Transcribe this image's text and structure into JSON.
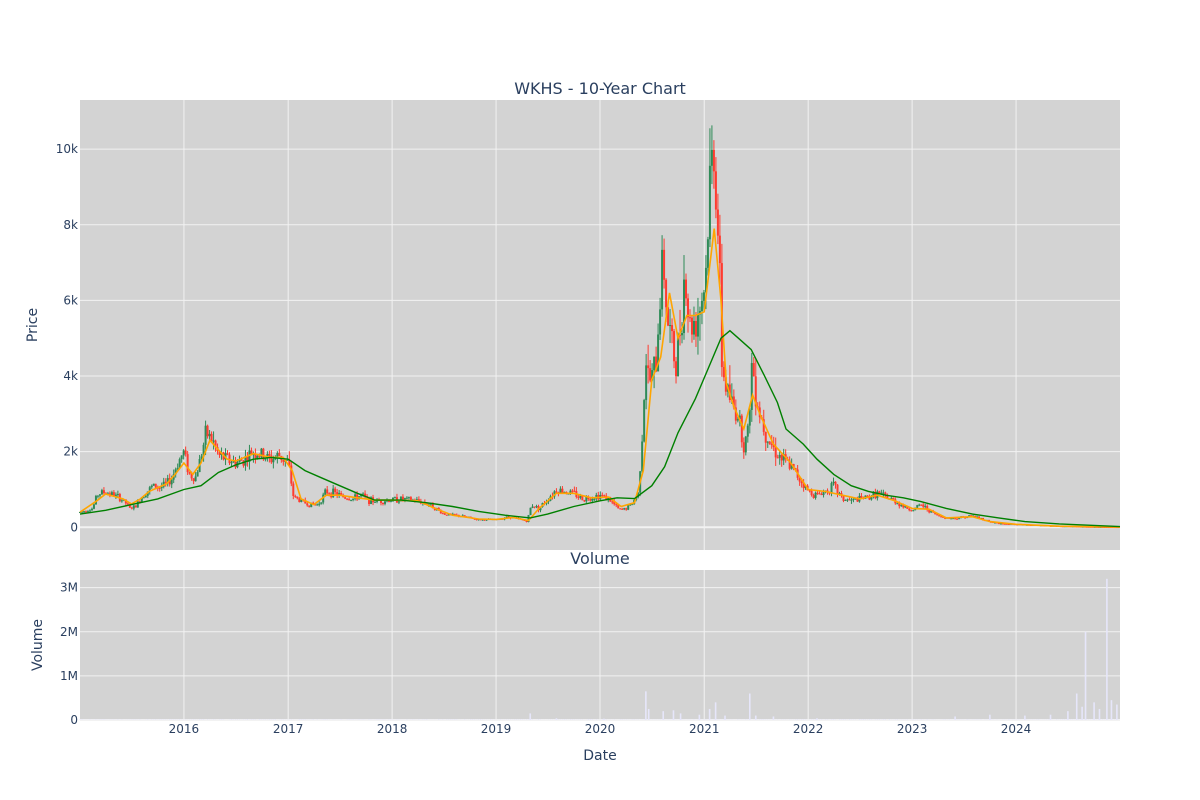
{
  "chart_data": {
    "type": "candlestick",
    "title": "WKHS - 10-Year Chart",
    "colors": {
      "plot_background": "#d3d3d3",
      "grid": "#f2f2f2",
      "increasing": "#2e8b57",
      "decreasing": "#ff3b2f",
      "ma_short": "#ffa500",
      "ma_long": "#008000",
      "volume": "#e6e6fa",
      "text": "#2a3f5f"
    },
    "price_panel": {
      "ylabel": "Price",
      "ylim": [
        -600,
        11300
      ],
      "yticks": [
        0,
        2000,
        4000,
        6000,
        8000,
        10000
      ],
      "ytick_labels": [
        "0",
        "2k",
        "4k",
        "6k",
        "8k",
        "10k"
      ],
      "grid": true,
      "series_keys": [
        {
          "type": "candlestick"
        },
        {
          "type": "line",
          "color": "#ffa500",
          "description": "short moving average"
        },
        {
          "type": "line",
          "color": "#008000",
          "description": "long moving average"
        }
      ],
      "close": [
        [
          "2015-01-01",
          400
        ],
        [
          "2015-02-15",
          500
        ],
        [
          "2015-03-01",
          850
        ],
        [
          "2015-03-20",
          930
        ],
        [
          "2015-04-15",
          900
        ],
        [
          "2015-05-15",
          800
        ],
        [
          "2015-06-10",
          650
        ],
        [
          "2015-06-25",
          500
        ],
        [
          "2015-07-15",
          550
        ],
        [
          "2015-08-10",
          850
        ],
        [
          "2015-09-01",
          1000
        ],
        [
          "2015-09-15",
          1100
        ],
        [
          "2015-10-10",
          1050
        ],
        [
          "2015-11-01",
          1150
        ],
        [
          "2015-11-20",
          1300
        ],
        [
          "2015-12-10",
          1700
        ],
        [
          "2016-01-01",
          2000
        ],
        [
          "2016-01-20",
          1400
        ],
        [
          "2016-02-10",
          1300
        ],
        [
          "2016-03-01",
          1900
        ],
        [
          "2016-03-20",
          2500
        ],
        [
          "2016-04-10",
          2300
        ],
        [
          "2016-05-01",
          1900
        ],
        [
          "2016-06-01",
          1800
        ],
        [
          "2016-07-01",
          1700
        ],
        [
          "2016-08-01",
          1800
        ],
        [
          "2016-09-01",
          2000
        ],
        [
          "2016-10-01",
          1900
        ],
        [
          "2016-11-01",
          1800
        ],
        [
          "2016-12-01",
          1900
        ],
        [
          "2017-01-01",
          1700
        ],
        [
          "2017-01-20",
          800
        ],
        [
          "2017-02-15",
          700
        ],
        [
          "2017-03-15",
          600
        ],
        [
          "2017-04-15",
          600
        ],
        [
          "2017-05-15",
          950
        ],
        [
          "2017-06-15",
          900
        ],
        [
          "2017-07-15",
          800
        ],
        [
          "2017-08-15",
          750
        ],
        [
          "2017-09-15",
          850
        ],
        [
          "2017-10-15",
          700
        ],
        [
          "2017-12-01",
          700
        ],
        [
          "2018-02-01",
          750
        ],
        [
          "2018-04-01",
          700
        ],
        [
          "2018-05-15",
          600
        ],
        [
          "2018-07-01",
          350
        ],
        [
          "2018-09-01",
          300
        ],
        [
          "2018-11-01",
          200
        ],
        [
          "2019-01-01",
          200
        ],
        [
          "2019-02-15",
          280
        ],
        [
          "2019-04-01",
          200
        ],
        [
          "2019-04-20",
          150
        ],
        [
          "2019-05-05",
          600
        ],
        [
          "2019-06-01",
          500
        ],
        [
          "2019-07-01",
          750
        ],
        [
          "2019-08-01",
          1000
        ],
        [
          "2019-09-01",
          950
        ],
        [
          "2019-10-01",
          900
        ],
        [
          "2019-11-01",
          750
        ],
        [
          "2019-12-01",
          800
        ],
        [
          "2020-01-01",
          850
        ],
        [
          "2020-02-01",
          750
        ],
        [
          "2020-03-10",
          450
        ],
        [
          "2020-04-01",
          500
        ],
        [
          "2020-04-20",
          600
        ],
        [
          "2020-05-15",
          900
        ],
        [
          "2020-06-01",
          3000
        ],
        [
          "2020-06-10",
          4500
        ],
        [
          "2020-06-20",
          3800
        ],
        [
          "2020-07-01",
          4000
        ],
        [
          "2020-07-15",
          4200
        ],
        [
          "2020-08-01",
          6500
        ],
        [
          "2020-08-10",
          7200
        ],
        [
          "2020-08-25",
          5500
        ],
        [
          "2020-09-10",
          4800
        ],
        [
          "2020-09-25",
          4200
        ],
        [
          "2020-10-10",
          5500
        ],
        [
          "2020-10-25",
          6800
        ],
        [
          "2020-11-10",
          5300
        ],
        [
          "2020-12-01",
          5500
        ],
        [
          "2020-12-20",
          6000
        ],
        [
          "2021-01-05",
          6500
        ],
        [
          "2021-01-20",
          9000
        ],
        [
          "2021-02-05",
          10200
        ],
        [
          "2021-02-20",
          7500
        ],
        [
          "2021-03-05",
          4200
        ],
        [
          "2021-03-20",
          3700
        ],
        [
          "2021-04-10",
          3200
        ],
        [
          "2021-05-01",
          3000
        ],
        [
          "2021-05-20",
          2200
        ],
        [
          "2021-06-05",
          2500
        ],
        [
          "2021-06-15",
          4300
        ],
        [
          "2021-06-25",
          4000
        ],
        [
          "2021-07-10",
          3200
        ],
        [
          "2021-08-01",
          2600
        ],
        [
          "2021-09-01",
          2100
        ],
        [
          "2021-10-01",
          1800
        ],
        [
          "2021-11-01",
          1600
        ],
        [
          "2021-12-01",
          1300
        ],
        [
          "2022-01-01",
          950
        ],
        [
          "2022-02-01",
          850
        ],
        [
          "2022-03-01",
          950
        ],
        [
          "2022-04-01",
          1100
        ],
        [
          "2022-05-01",
          750
        ],
        [
          "2022-06-01",
          700
        ],
        [
          "2022-07-01",
          750
        ],
        [
          "2022-08-01",
          800
        ],
        [
          "2022-09-01",
          900
        ],
        [
          "2022-10-01",
          800
        ],
        [
          "2022-11-01",
          700
        ],
        [
          "2022-12-01",
          550
        ],
        [
          "2023-01-01",
          450
        ],
        [
          "2023-02-01",
          600
        ],
        [
          "2023-03-01",
          450
        ],
        [
          "2023-04-01",
          300
        ],
        [
          "2023-05-01",
          250
        ],
        [
          "2023-06-01",
          230
        ],
        [
          "2023-07-01",
          280
        ],
        [
          "2023-08-01",
          300
        ],
        [
          "2023-09-01",
          230
        ],
        [
          "2023-10-01",
          150
        ],
        [
          "2023-11-01",
          100
        ],
        [
          "2023-12-01",
          90
        ],
        [
          "2024-01-01",
          80
        ],
        [
          "2024-02-01",
          70
        ],
        [
          "2024-04-01",
          50
        ],
        [
          "2024-06-01",
          30
        ],
        [
          "2024-08-01",
          20
        ],
        [
          "2024-10-01",
          10
        ],
        [
          "2024-12-31",
          5
        ]
      ],
      "ma_short": [
        [
          "2015-01-01",
          400
        ],
        [
          "2015-03-01",
          700
        ],
        [
          "2015-04-01",
          880
        ],
        [
          "2015-06-01",
          750
        ],
        [
          "2015-07-01",
          620
        ],
        [
          "2015-08-01",
          750
        ],
        [
          "2015-09-01",
          950
        ],
        [
          "2015-10-01",
          1050
        ],
        [
          "2015-11-01",
          1150
        ],
        [
          "2015-12-01",
          1400
        ],
        [
          "2016-01-01",
          1700
        ],
        [
          "2016-02-01",
          1400
        ],
        [
          "2016-03-01",
          1700
        ],
        [
          "2016-04-01",
          2300
        ],
        [
          "2016-05-01",
          2050
        ],
        [
          "2016-06-01",
          1800
        ],
        [
          "2016-07-01",
          1750
        ],
        [
          "2016-09-01",
          1950
        ],
        [
          "2016-11-01",
          1850
        ],
        [
          "2016-12-15",
          1850
        ],
        [
          "2017-01-15",
          1500
        ],
        [
          "2017-02-15",
          750
        ],
        [
          "2017-04-01",
          600
        ],
        [
          "2017-05-15",
          850
        ],
        [
          "2017-07-01",
          850
        ],
        [
          "2017-09-01",
          780
        ],
        [
          "2017-11-01",
          720
        ],
        [
          "2018-01-01",
          720
        ],
        [
          "2018-04-01",
          700
        ],
        [
          "2018-06-01",
          500
        ],
        [
          "2018-08-01",
          320
        ],
        [
          "2018-11-01",
          220
        ],
        [
          "2019-01-01",
          210
        ],
        [
          "2019-03-01",
          260
        ],
        [
          "2019-04-25",
          180
        ],
        [
          "2019-06-01",
          500
        ],
        [
          "2019-08-01",
          900
        ],
        [
          "2019-10-01",
          900
        ],
        [
          "2019-12-01",
          780
        ],
        [
          "2020-02-01",
          800
        ],
        [
          "2020-03-15",
          550
        ],
        [
          "2020-05-01",
          650
        ],
        [
          "2020-06-01",
          1500
        ],
        [
          "2020-07-01",
          3900
        ],
        [
          "2020-08-01",
          4500
        ],
        [
          "2020-09-01",
          6200
        ],
        [
          "2020-10-01",
          5000
        ],
        [
          "2020-11-01",
          5600
        ],
        [
          "2020-12-01",
          5600
        ],
        [
          "2021-01-01",
          5700
        ],
        [
          "2021-02-05",
          7900
        ],
        [
          "2021-03-01",
          6000
        ],
        [
          "2021-03-20",
          3800
        ],
        [
          "2021-04-15",
          3200
        ],
        [
          "2021-05-20",
          2600
        ],
        [
          "2021-06-20",
          3500
        ],
        [
          "2021-07-15",
          3000
        ],
        [
          "2021-09-01",
          2200
        ],
        [
          "2021-11-01",
          1700
        ],
        [
          "2022-01-01",
          1000
        ],
        [
          "2022-03-01",
          950
        ],
        [
          "2022-05-01",
          850
        ],
        [
          "2022-07-01",
          750
        ],
        [
          "2022-09-01",
          850
        ],
        [
          "2022-11-01",
          700
        ],
        [
          "2023-01-01",
          500
        ],
        [
          "2023-03-01",
          480
        ],
        [
          "2023-05-01",
          250
        ],
        [
          "2023-08-01",
          280
        ],
        [
          "2023-10-01",
          150
        ],
        [
          "2024-01-01",
          80
        ],
        [
          "2024-06-01",
          30
        ],
        [
          "2024-12-31",
          5
        ]
      ],
      "ma_long": [
        [
          "2015-01-01",
          350
        ],
        [
          "2015-04-01",
          450
        ],
        [
          "2015-07-01",
          600
        ],
        [
          "2015-10-01",
          750
        ],
        [
          "2016-01-01",
          1000
        ],
        [
          "2016-03-01",
          1100
        ],
        [
          "2016-05-01",
          1450
        ],
        [
          "2016-07-01",
          1650
        ],
        [
          "2016-09-01",
          1800
        ],
        [
          "2016-11-01",
          1850
        ],
        [
          "2017-01-01",
          1800
        ],
        [
          "2017-03-01",
          1500
        ],
        [
          "2017-05-01",
          1300
        ],
        [
          "2017-07-01",
          1100
        ],
        [
          "2017-09-01",
          900
        ],
        [
          "2017-11-01",
          720
        ],
        [
          "2018-02-01",
          720
        ],
        [
          "2018-05-01",
          650
        ],
        [
          "2018-08-01",
          550
        ],
        [
          "2018-11-01",
          420
        ],
        [
          "2019-02-01",
          320
        ],
        [
          "2019-05-01",
          250
        ],
        [
          "2019-07-01",
          350
        ],
        [
          "2019-10-01",
          550
        ],
        [
          "2020-01-01",
          700
        ],
        [
          "2020-03-01",
          780
        ],
        [
          "2020-05-01",
          760
        ],
        [
          "2020-07-01",
          1100
        ],
        [
          "2020-08-15",
          1600
        ],
        [
          "2020-10-01",
          2500
        ],
        [
          "2020-12-01",
          3400
        ],
        [
          "2021-01-15",
          4200
        ],
        [
          "2021-03-01",
          5000
        ],
        [
          "2021-04-01",
          5200
        ],
        [
          "2021-05-01",
          5000
        ],
        [
          "2021-06-15",
          4700
        ],
        [
          "2021-08-01",
          4000
        ],
        [
          "2021-09-15",
          3300
        ],
        [
          "2021-10-15",
          2600
        ],
        [
          "2021-12-15",
          2200
        ],
        [
          "2022-02-01",
          1800
        ],
        [
          "2022-04-01",
          1400
        ],
        [
          "2022-06-01",
          1100
        ],
        [
          "2022-08-01",
          950
        ],
        [
          "2022-10-01",
          850
        ],
        [
          "2022-12-01",
          780
        ],
        [
          "2023-02-01",
          680
        ],
        [
          "2023-05-01",
          500
        ],
        [
          "2023-08-01",
          350
        ],
        [
          "2023-11-01",
          250
        ],
        [
          "2024-02-01",
          150
        ],
        [
          "2024-06-01",
          90
        ],
        [
          "2024-12-31",
          20
        ]
      ]
    },
    "volume_panel": {
      "subtitle": "Volume",
      "ylabel": "Volume",
      "ylim": [
        0,
        3400000
      ],
      "yticks": [
        0,
        1000000,
        2000000,
        3000000
      ],
      "ytick_labels": [
        "0",
        "1M",
        "2M",
        "3M"
      ],
      "grid": true,
      "spikes": [
        [
          "2019-05-01",
          150000
        ],
        [
          "2019-08-01",
          40000
        ],
        [
          "2020-01-15",
          30000
        ],
        [
          "2020-06-10",
          650000
        ],
        [
          "2020-06-20",
          250000
        ],
        [
          "2020-08-10",
          200000
        ],
        [
          "2020-09-15",
          220000
        ],
        [
          "2020-10-10",
          150000
        ],
        [
          "2020-12-15",
          120000
        ],
        [
          "2021-01-20",
          250000
        ],
        [
          "2021-02-10",
          400000
        ],
        [
          "2021-03-15",
          100000
        ],
        [
          "2021-06-10",
          600000
        ],
        [
          "2021-07-01",
          100000
        ],
        [
          "2021-09-01",
          80000
        ],
        [
          "2022-02-01",
          40000
        ],
        [
          "2023-06-01",
          80000
        ],
        [
          "2023-10-01",
          120000
        ],
        [
          "2024-02-01",
          100000
        ],
        [
          "2024-05-01",
          120000
        ],
        [
          "2024-07-01",
          200000
        ],
        [
          "2024-08-01",
          600000
        ],
        [
          "2024-08-20",
          300000
        ],
        [
          "2024-09-01",
          2000000
        ],
        [
          "2024-10-01",
          400000
        ],
        [
          "2024-10-20",
          250000
        ],
        [
          "2024-11-15",
          3200000
        ],
        [
          "2024-12-01",
          450000
        ],
        [
          "2024-12-20",
          350000
        ]
      ]
    },
    "x_axis": {
      "xlabel": "Date",
      "range": [
        "2015-01-01",
        "2024-12-31"
      ],
      "ticks": [
        "2016",
        "2017",
        "2018",
        "2019",
        "2020",
        "2021",
        "2022",
        "2023",
        "2024"
      ]
    }
  }
}
